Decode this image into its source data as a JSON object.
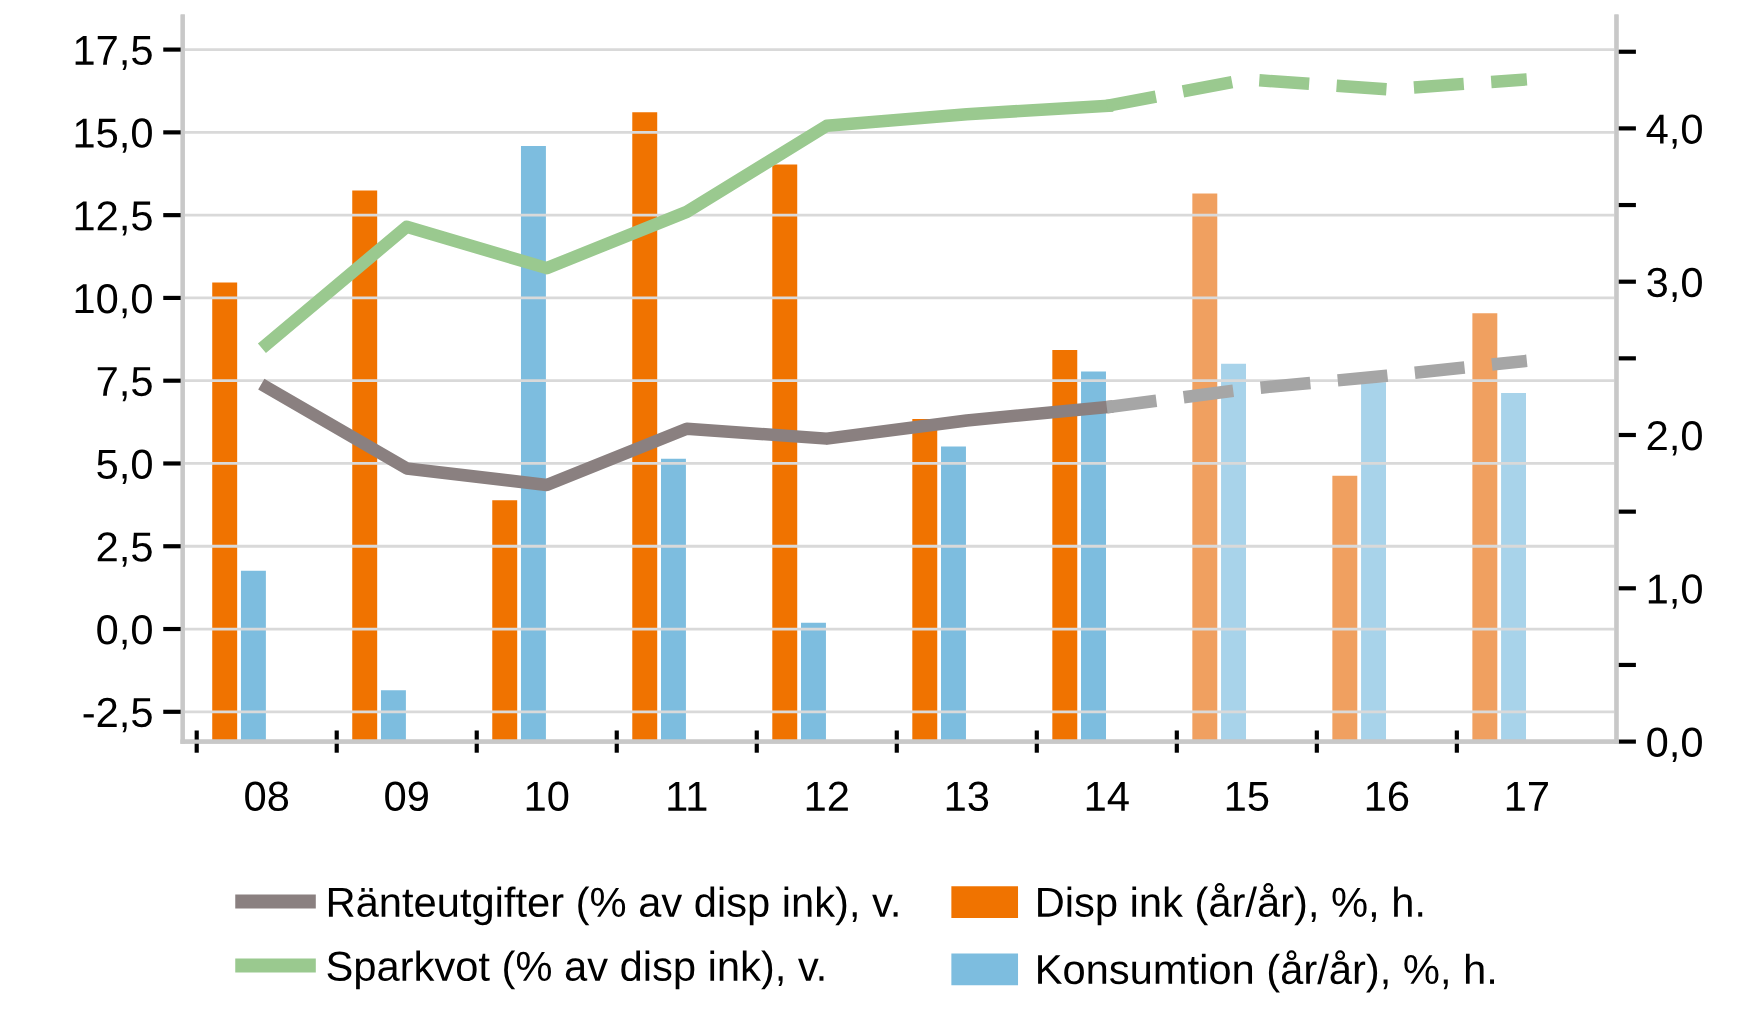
{
  "chart_data": {
    "type": "bar",
    "categories": [
      "08",
      "09",
      "10",
      "11",
      "12",
      "13",
      "14",
      "15",
      "16",
      "17"
    ],
    "series": [
      {
        "name": "Disp ink (år/år), %, h.",
        "axis": "y2",
        "color": "#f07300",
        "colors": [
          "#f07300",
          "#f07300",
          "#f07300",
          "#f07300",
          "#f07300",
          "#f07300",
          "#f07300",
          "#f0a060",
          "#f0a060",
          "#f0a060"
        ],
        "values": [
          3.0,
          3.6,
          1.58,
          4.11,
          3.77,
          2.11,
          2.56,
          3.58,
          1.74,
          2.8
        ]
      },
      {
        "name": "Konsumtion (år/år), %, h.",
        "axis": "y2",
        "color": "#7dbddf",
        "colors": [
          "#7dbddf",
          "#7dbddf",
          "#7dbddf",
          "#7dbddf",
          "#7dbddf",
          "#7dbddf",
          "#7dbddf",
          "#a8d3ea",
          "#a8d3ea",
          "#a8d3ea"
        ],
        "values": [
          1.12,
          0.34,
          3.89,
          1.85,
          0.78,
          1.93,
          2.42,
          2.47,
          2.35,
          2.28
        ]
      },
      {
        "name": "Ränteutgifter (% av disp ink), v.",
        "type": "line",
        "color": "#8a8080",
        "line_style": "solid",
        "values": [
          7.3,
          4.85,
          4.35,
          6.05,
          5.75,
          6.3,
          6.7,
          null,
          null,
          null
        ]
      },
      {
        "type": "line",
        "color": "#a6a6a6",
        "line_style": "dashed",
        "values": [
          null,
          null,
          null,
          null,
          null,
          null,
          6.7,
          7.25,
          7.65,
          8.1
        ]
      },
      {
        "name": "Sparkvot (% av disp ink), v.",
        "type": "line",
        "color": "#9ac98f",
        "line_style": "solid",
        "values": [
          8.6,
          12.15,
          10.9,
          12.6,
          15.2,
          15.55,
          15.8,
          null,
          null,
          null
        ]
      },
      {
        "type": "line",
        "color": "#9ac98f",
        "line_style": "dashed",
        "values": [
          null,
          null,
          null,
          null,
          null,
          null,
          15.8,
          16.6,
          16.3,
          16.6
        ]
      }
    ],
    "ylim": [
      -3.4,
      18.5
    ],
    "yticks": [
      {
        "value": -2.5,
        "label": "-2,5"
      },
      {
        "value": 0,
        "label": "0,0"
      },
      {
        "value": 2.5,
        "label": "2,5"
      },
      {
        "value": 5,
        "label": "5,0"
      },
      {
        "value": 7.5,
        "label": "7,5"
      },
      {
        "value": 10,
        "label": "10,0"
      },
      {
        "value": 12.5,
        "label": "12,5"
      },
      {
        "value": 15,
        "label": "15,0"
      },
      {
        "value": 17.5,
        "label": "17,5"
      }
    ],
    "y2lim": [
      0,
      4.73
    ],
    "y2ticks": [
      {
        "value": 0,
        "label": "0,0"
      },
      {
        "value": 0.5,
        "label": null
      },
      {
        "value": 1,
        "label": "1,0"
      },
      {
        "value": 1.5,
        "label": null
      },
      {
        "value": 2,
        "label": "2,0"
      },
      {
        "value": 2.5,
        "label": null
      },
      {
        "value": 3,
        "label": "3,0"
      },
      {
        "value": 3.5,
        "label": null
      },
      {
        "value": 4,
        "label": "4,0"
      },
      {
        "value": 4.5,
        "label": null
      }
    ],
    "grid": "y",
    "legend": "bottom",
    "marker": "none"
  }
}
